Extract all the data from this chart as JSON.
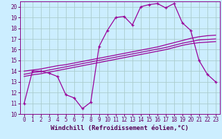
{
  "xlabel": "Windchill (Refroidissement éolien,°C)",
  "background_color": "#cceeff",
  "grid_color": "#aacccc",
  "line_color": "#990099",
  "xlim": [
    -0.5,
    23.5
  ],
  "ylim": [
    10,
    20.5
  ],
  "xticks": [
    0,
    1,
    2,
    3,
    4,
    5,
    6,
    7,
    8,
    9,
    10,
    11,
    12,
    13,
    14,
    15,
    16,
    17,
    18,
    19,
    20,
    21,
    22,
    23
  ],
  "yticks": [
    10,
    11,
    12,
    13,
    14,
    15,
    16,
    17,
    18,
    19,
    20
  ],
  "line1_x": [
    0,
    1,
    2,
    3,
    4,
    5,
    6,
    7,
    8,
    9,
    10,
    11,
    12,
    13,
    14,
    15,
    16,
    17,
    18,
    19,
    20,
    21,
    22,
    23
  ],
  "line1_y": [
    11.0,
    14.0,
    14.0,
    13.8,
    13.5,
    11.8,
    11.5,
    10.5,
    11.1,
    16.3,
    17.8,
    19.0,
    19.1,
    18.3,
    20.0,
    20.2,
    20.3,
    19.9,
    20.3,
    18.5,
    17.8,
    15.0,
    13.7,
    13.0
  ],
  "line2_x": [
    0,
    1,
    2,
    3,
    4,
    5,
    6,
    7,
    8,
    9,
    10,
    11,
    12,
    13,
    14,
    15,
    16,
    17,
    18,
    19,
    20,
    21,
    22,
    23
  ],
  "line2_y": [
    14.0,
    14.1,
    14.2,
    14.35,
    14.5,
    14.6,
    14.75,
    14.9,
    15.05,
    15.2,
    15.35,
    15.5,
    15.65,
    15.8,
    15.95,
    16.1,
    16.25,
    16.45,
    16.65,
    16.85,
    17.05,
    17.2,
    17.3,
    17.35
  ],
  "line3_x": [
    0,
    1,
    2,
    3,
    4,
    5,
    6,
    7,
    8,
    9,
    10,
    11,
    12,
    13,
    14,
    15,
    16,
    17,
    18,
    19,
    20,
    21,
    22,
    23
  ],
  "line3_y": [
    13.7,
    13.85,
    13.95,
    14.1,
    14.25,
    14.4,
    14.55,
    14.7,
    14.85,
    15.0,
    15.15,
    15.3,
    15.45,
    15.6,
    15.75,
    15.9,
    16.05,
    16.2,
    16.4,
    16.6,
    16.75,
    16.9,
    16.95,
    17.0
  ],
  "line4_x": [
    0,
    1,
    2,
    3,
    4,
    5,
    6,
    7,
    8,
    9,
    10,
    11,
    12,
    13,
    14,
    15,
    16,
    17,
    18,
    19,
    20,
    21,
    22,
    23
  ],
  "line4_y": [
    13.5,
    13.65,
    13.75,
    13.9,
    14.05,
    14.2,
    14.35,
    14.5,
    14.65,
    14.8,
    14.95,
    15.1,
    15.25,
    15.4,
    15.55,
    15.7,
    15.85,
    16.0,
    16.2,
    16.4,
    16.55,
    16.65,
    16.7,
    16.75
  ],
  "tick_fontsize": 5.5,
  "label_fontsize": 6.5
}
